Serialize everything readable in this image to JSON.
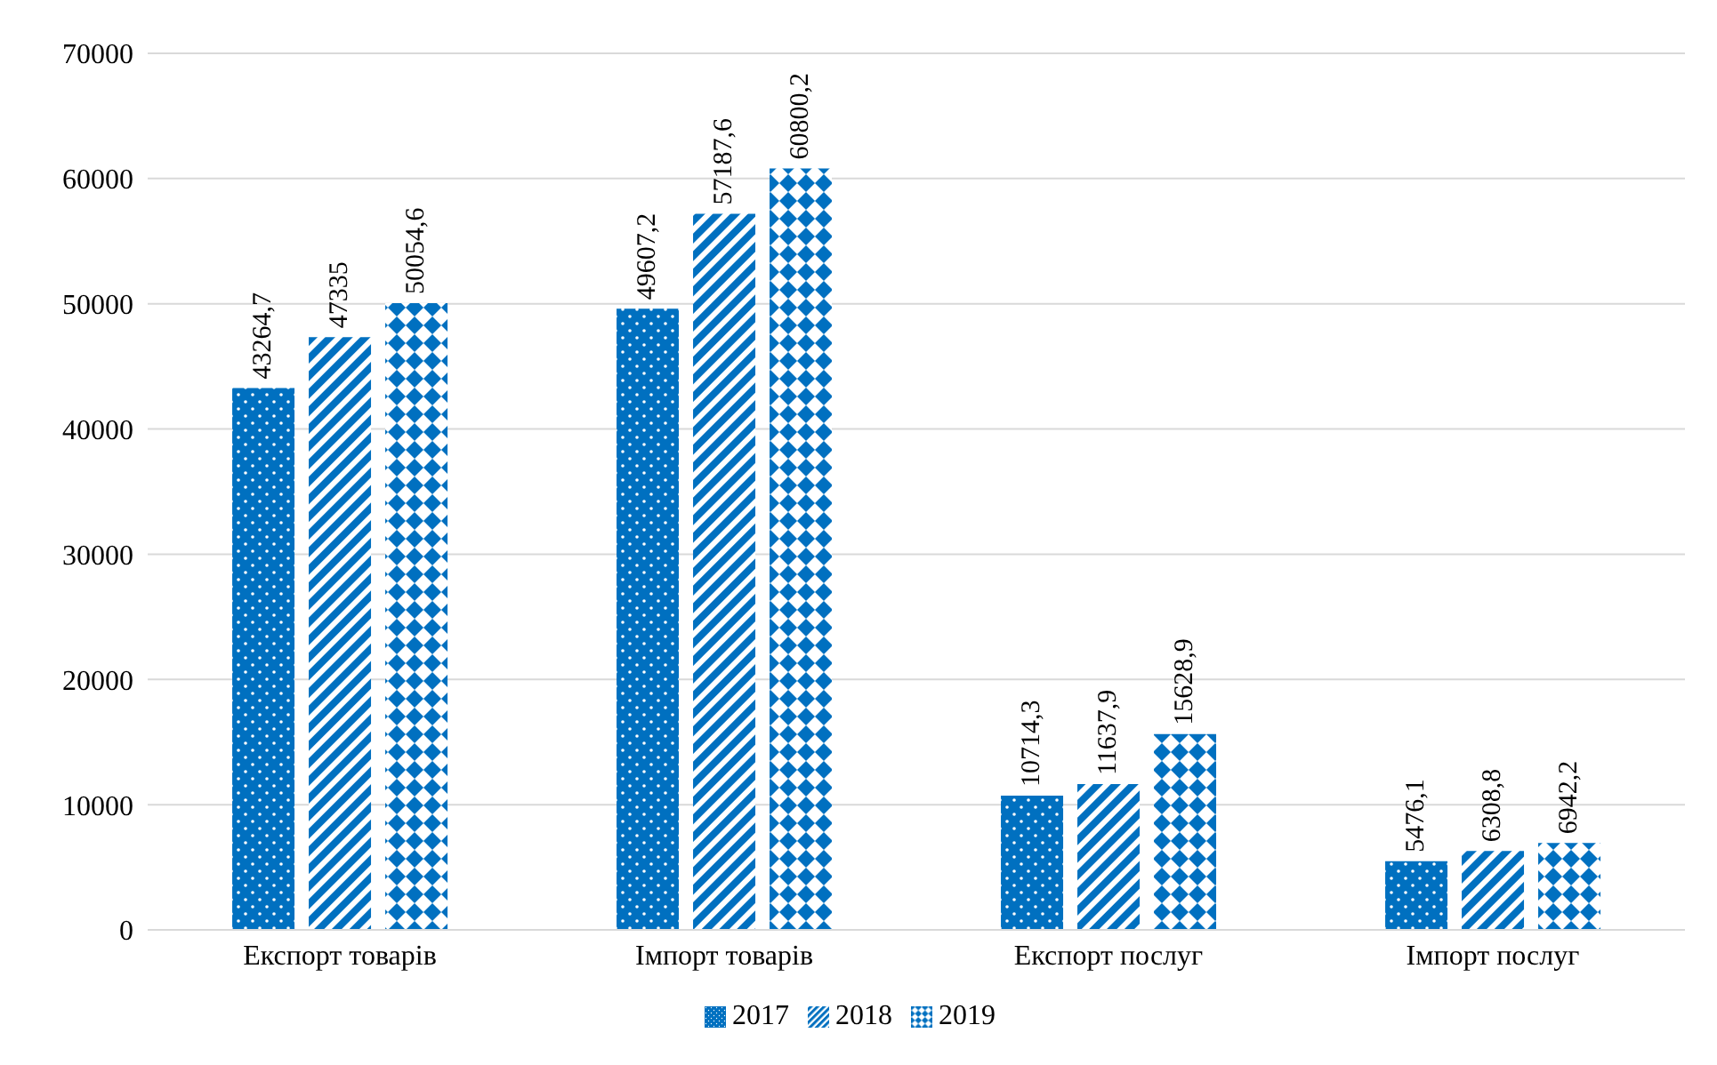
{
  "chart_data": {
    "type": "bar",
    "categories": [
      "Експорт товарів",
      "Імпорт товарів",
      "Експорт послуг",
      "Імпорт послуг"
    ],
    "series": [
      {
        "name": "2017",
        "color": "#0070c0",
        "values": [
          43264.7,
          49607.2,
          10714.3,
          5476.1
        ],
        "value_labels": [
          "43264,7",
          "49607,2",
          "10714,3",
          "5476,1"
        ]
      },
      {
        "name": "2018",
        "color": "#0070c0",
        "values": [
          47335,
          57187.6,
          11637.9,
          6308.8
        ],
        "value_labels": [
          "47335",
          "57187,6",
          "11637,9",
          "6308,8"
        ]
      },
      {
        "name": "2019",
        "color": "#0070c0",
        "values": [
          50054.6,
          60800.2,
          15628.9,
          6942.2
        ],
        "value_labels": [
          "50054,6",
          "60800,2",
          "15628,9",
          "6942,2"
        ]
      }
    ],
    "ylim": [
      0,
      70000
    ],
    "yticks": [
      0,
      10000,
      20000,
      30000,
      40000,
      50000,
      60000,
      70000
    ],
    "grid": "y",
    "legend": "bottom"
  }
}
